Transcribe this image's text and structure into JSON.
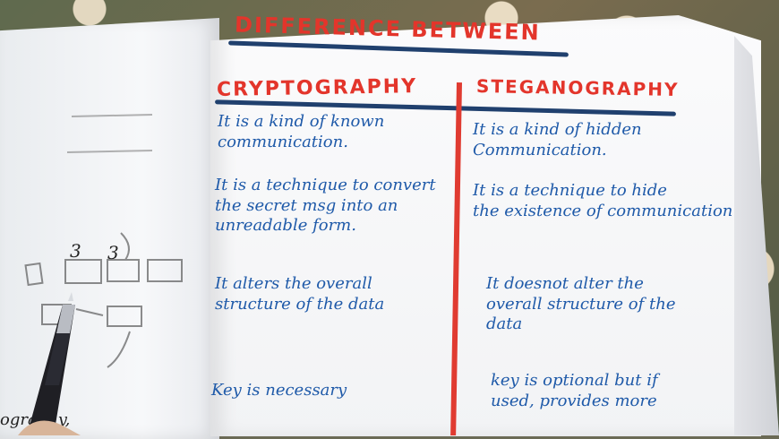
{
  "title": "DIFFERENCE BETWEEN",
  "column_headers": {
    "left": "CRYPTOGRAPHY",
    "right": "STEGANOGRAPHY"
  },
  "rows": [
    {
      "left": "It is a kind of known\ncommunication.",
      "right": "It is a kind of hidden\nCommunication."
    },
    {
      "left": "It is a technique to convert\nthe secret msg into an\nunreadable form.",
      "right": "It is a technique to hide\nthe existence of communication"
    },
    {
      "left": "It alters the overall\nstructure of the data",
      "right": "It doesnot alter the\noverall structure of the\ndata"
    },
    {
      "left": "Key is necessary",
      "right": "key is optional but if\nused, provides more"
    }
  ],
  "left_page_fragments": {
    "num1": "3",
    "num2": "3",
    "bottom_text": "ography,"
  },
  "colors": {
    "ink_blue": "#1f5aa9",
    "title_red": "#e3352b",
    "underline_navy": "#20406e",
    "divider_red": "#e03b31"
  }
}
